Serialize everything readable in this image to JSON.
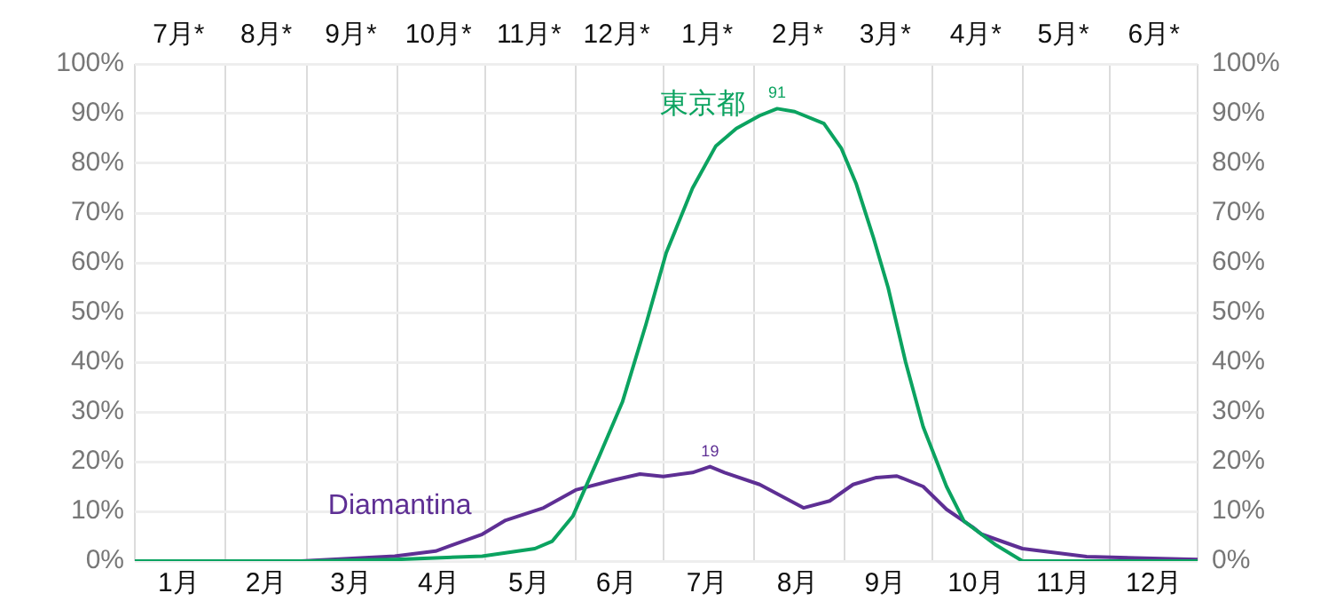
{
  "chart_data": {
    "type": "line",
    "x": [
      "--01-01",
      "--03-02",
      "--03-31",
      "--04-30",
      "--05-18",
      "--05-24",
      "--05-31",
      "--06-09",
      "--06-17",
      "--06-25",
      "--07-02",
      "--07-11",
      "--07-19",
      "--07-26",
      "--08-03",
      "--08-09",
      "--08-15",
      "--08-25",
      "--08-31",
      "--09-05",
      "--09-11",
      "--09-16",
      "--09-22",
      "--09-28",
      "--10-06",
      "--10-12",
      "--10-23",
      "--11-01",
      "--12-31"
    ],
    "series": [
      {
        "name": "東京都",
        "color": "#0ba360",
        "values": [
          0,
          0,
          0.3,
          1,
          2.5,
          4,
          9,
          21,
          32,
          47.5,
          62,
          75,
          83.5,
          87,
          89.6,
          91,
          90.4,
          88,
          83,
          76,
          65,
          55,
          40,
          27,
          15,
          8,
          3.2,
          0,
          0
        ],
        "value_labels": [
          null,
          null,
          null,
          null,
          null,
          null,
          null,
          null,
          null,
          null,
          null,
          null,
          null,
          null,
          null,
          "91",
          null,
          null,
          null,
          null,
          null,
          null,
          null,
          null,
          null,
          null,
          null,
          null,
          null
        ]
      },
      {
        "name": "Diamantina",
        "color": "#5e2f94",
        "x": [
          "--01-01",
          "--02-27",
          "--03-31",
          "--04-14",
          "--04-30",
          "--05-08",
          "--05-21",
          "--06-01",
          "--06-14",
          "--06-23",
          "--07-01",
          "--07-11",
          "--07-17",
          "--07-22",
          "--08-03",
          "--08-11",
          "--08-18",
          "--08-27",
          "--09-04",
          "--09-12",
          "--09-19",
          "--09-28",
          "--10-06",
          "--10-15",
          "--10-18",
          "--11-01",
          "--11-23",
          "--12-31"
        ],
        "values": [
          0,
          0,
          1,
          2,
          5.4,
          8.2,
          10.7,
          14.3,
          16.3,
          17.5,
          17,
          17.8,
          19,
          17.8,
          15.4,
          12.9,
          10.7,
          12.1,
          15.4,
          16.8,
          17.1,
          15,
          10.4,
          6.8,
          5.4,
          2.5,
          0.9,
          0.3
        ],
        "value_labels": [
          null,
          null,
          null,
          null,
          null,
          null,
          null,
          null,
          null,
          null,
          null,
          null,
          "19",
          null,
          null,
          null,
          null,
          null,
          null,
          null,
          null,
          null,
          null,
          null,
          null,
          null,
          null,
          null
        ]
      }
    ],
    "xlim": [
      "--01-01",
      "--12-31"
    ],
    "xticks": [
      {
        "value": "--01-01",
        "label": null
      },
      {
        "value": "--01-16",
        "label": "1月"
      },
      {
        "value": "--02-01",
        "label": null
      },
      {
        "value": "--02-15",
        "label": "2月"
      },
      {
        "value": "--03-01",
        "label": null
      },
      {
        "value": "--03-16",
        "label": "3月"
      },
      {
        "value": "--04-01",
        "label": null
      },
      {
        "value": "--04-15",
        "label": "4月"
      },
      {
        "value": "--05-01",
        "label": null
      },
      {
        "value": "--05-16",
        "label": "5月"
      },
      {
        "value": "--06-01",
        "label": null
      },
      {
        "value": "--06-15",
        "label": "6月"
      },
      {
        "value": "--07-01",
        "label": null
      },
      {
        "value": "--07-16",
        "label": "7月"
      },
      {
        "value": "--08-01",
        "label": null
      },
      {
        "value": "--08-16",
        "label": "8月"
      },
      {
        "value": "--09-01",
        "label": null
      },
      {
        "value": "--09-15",
        "label": "9月"
      },
      {
        "value": "--10-01",
        "label": null
      },
      {
        "value": "--10-16",
        "label": "10月"
      },
      {
        "value": "--11-01",
        "label": null
      },
      {
        "value": "--11-15",
        "label": "11月"
      },
      {
        "value": "--12-01",
        "label": null
      },
      {
        "value": "--12-16",
        "label": "12月"
      },
      {
        "value": "--12-31",
        "label": null
      }
    ],
    "annotations": [
      "7月*",
      "8月*",
      "9月*",
      "10月*",
      "11月*",
      "12月*",
      "1月*",
      "2月*",
      "3月*",
      "4月*",
      "5月*",
      "6月*"
    ],
    "ylim": [
      0,
      100
    ],
    "yticks": [
      {
        "value": 0,
        "label": "0%"
      },
      {
        "value": 10,
        "label": "10%"
      },
      {
        "value": 20,
        "label": "20%"
      },
      {
        "value": 30,
        "label": "30%"
      },
      {
        "value": 40,
        "label": "40%"
      },
      {
        "value": 50,
        "label": "50%"
      },
      {
        "value": 60,
        "label": "60%"
      },
      {
        "value": 70,
        "label": "70%"
      },
      {
        "value": 80,
        "label": "80%"
      },
      {
        "value": 90,
        "label": "90%"
      },
      {
        "value": 100,
        "label": "100%"
      }
    ],
    "y2lim": [
      0,
      100
    ],
    "y2ticks": [
      {
        "value": 0,
        "label": "0%"
      },
      {
        "value": 10,
        "label": "10%"
      },
      {
        "value": 20,
        "label": "20%"
      },
      {
        "value": 30,
        "label": "30%"
      },
      {
        "value": 40,
        "label": "40%"
      },
      {
        "value": 50,
        "label": "50%"
      },
      {
        "value": 60,
        "label": "60%"
      },
      {
        "value": 70,
        "label": "70%"
      },
      {
        "value": 80,
        "label": "80%"
      },
      {
        "value": 90,
        "label": "90%"
      },
      {
        "value": 100,
        "label": "100%"
      }
    ],
    "grid": true,
    "legend": false,
    "marker": "none",
    "line_style": "solid"
  }
}
